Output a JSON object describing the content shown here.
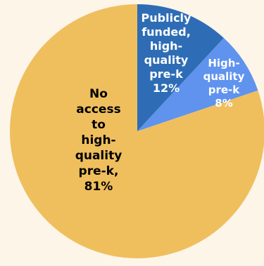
{
  "colors": {
    "background": "#fdf5e8",
    "publicly_funded": "#2e6db5",
    "high_quality": "#5f93ee",
    "no_access": "#efbf5e",
    "label_light": "#ffffff",
    "label_dark": "#000000"
  },
  "chart_data": {
    "type": "pie",
    "title": "",
    "slices": [
      {
        "name": "Publicly funded, high-quality pre-k",
        "value": 12,
        "label_lines": [
          "Publicly",
          "funded,",
          "high-",
          "quality",
          "pre-k",
          "12%"
        ],
        "color_key": "publicly_funded",
        "text_color_key": "label_light"
      },
      {
        "name": "High-quality pre-k",
        "value": 8,
        "label_lines": [
          "High-",
          "quality",
          "pre-k",
          "8%"
        ],
        "color_key": "high_quality",
        "text_color_key": "label_light"
      },
      {
        "name": "No access to high-quality pre-k",
        "value": 81,
        "label_lines": [
          "No",
          "access",
          "to",
          "high-",
          "quality",
          "pre-k,",
          "81%"
        ],
        "color_key": "no_access",
        "text_color_key": "label_dark"
      }
    ]
  }
}
